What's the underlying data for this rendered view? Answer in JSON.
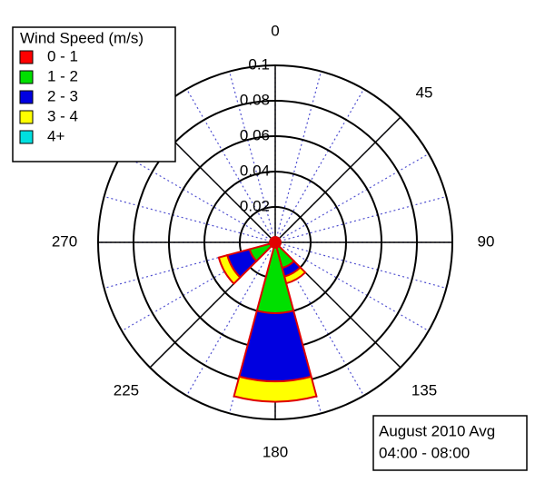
{
  "chart_data": {
    "type": "windrose",
    "legend_title": "Wind Speed (m/s)",
    "categories": [
      0,
      30,
      60,
      90,
      120,
      150,
      180,
      210,
      240,
      270,
      300,
      330
    ],
    "series": [
      {
        "name": "0 - 1",
        "color": "#ff0000",
        "values": [
          0.003,
          0.003,
          0.003,
          0.003,
          0.003,
          0.003,
          0.003,
          0.003,
          0.003,
          0.003,
          0.003,
          0.003
        ]
      },
      {
        "name": "1 - 2",
        "color": "#00e000",
        "values": [
          0,
          0,
          0,
          0,
          0,
          0.012,
          0.037,
          0,
          0.012,
          0,
          0,
          0
        ]
      },
      {
        "name": "2 - 3",
        "color": "#0000e0",
        "values": [
          0,
          0,
          0,
          0,
          0,
          0.005,
          0.0385,
          0,
          0.013,
          0,
          0,
          0
        ]
      },
      {
        "name": "3 - 4",
        "color": "#ffff00",
        "values": [
          0,
          0,
          0,
          0,
          0,
          0.004,
          0.0115,
          0,
          0.005,
          0,
          0,
          0
        ]
      },
      {
        "name": "4+",
        "color": "#00e0e0",
        "values": [
          0,
          0,
          0,
          0,
          0,
          0,
          0,
          0,
          0,
          0,
          0,
          0
        ]
      }
    ],
    "rlim": [
      0,
      0.1
    ],
    "rticks": [
      0.02,
      0.04,
      0.06,
      0.08,
      0.1
    ],
    "angle_ticks": [
      0,
      45,
      90,
      135,
      180,
      225,
      270
    ],
    "annotation": [
      "August 2010 Avg",
      "04:00 - 08:00"
    ]
  }
}
